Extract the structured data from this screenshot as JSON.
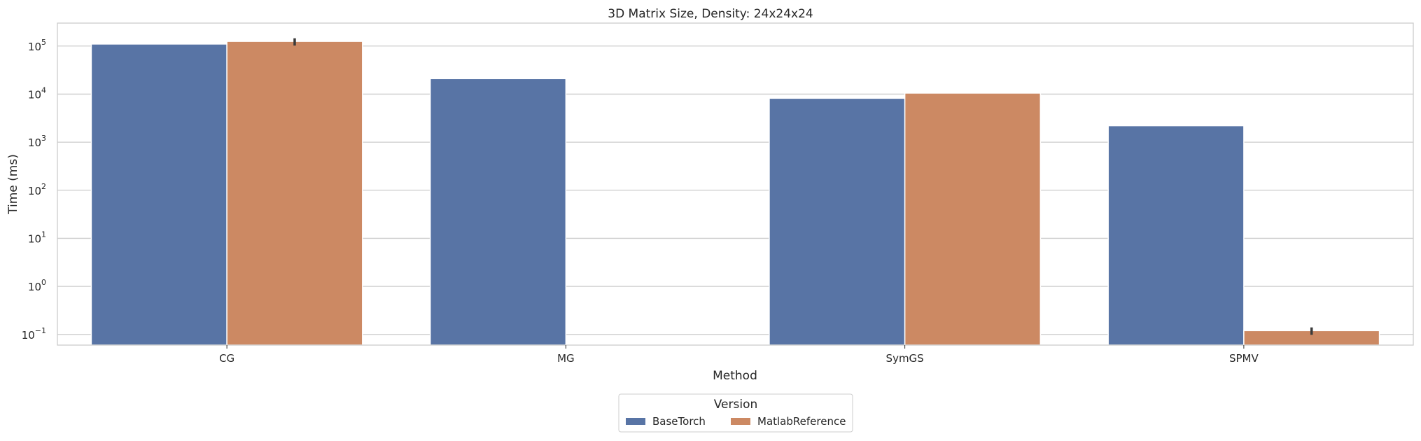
{
  "chart_data": {
    "type": "bar",
    "title": "3D Matrix Size, Density: 24x24x24",
    "xlabel": "Method",
    "ylabel": "Time (ms)",
    "categories": [
      "CG",
      "MG",
      "SymGS",
      "SPMV"
    ],
    "y_scale": "log",
    "ylim": [
      0.06,
      300000
    ],
    "y_ticks": [
      {
        "value": 0.1,
        "base": "10",
        "exp": "−1"
      },
      {
        "value": 1,
        "base": "10",
        "exp": "0"
      },
      {
        "value": 10,
        "base": "10",
        "exp": "1"
      },
      {
        "value": 100,
        "base": "10",
        "exp": "2"
      },
      {
        "value": 1000,
        "base": "10",
        "exp": "3"
      },
      {
        "value": 10000,
        "base": "10",
        "exp": "4"
      },
      {
        "value": 100000,
        "base": "10",
        "exp": "5"
      }
    ],
    "grid": true,
    "legend": {
      "title": "Version",
      "placement": "bottom-center"
    },
    "series": [
      {
        "name": "BaseTorch",
        "color": "#5874a5",
        "values": [
          110000,
          21000,
          8200,
          2200
        ],
        "error_high": [
          null,
          null,
          null,
          null
        ]
      },
      {
        "name": "MatlabReference",
        "color": "#cc8963",
        "values": [
          125000,
          null,
          10500,
          0.12
        ],
        "error_high": [
          145000,
          null,
          null,
          0.14
        ]
      }
    ]
  }
}
